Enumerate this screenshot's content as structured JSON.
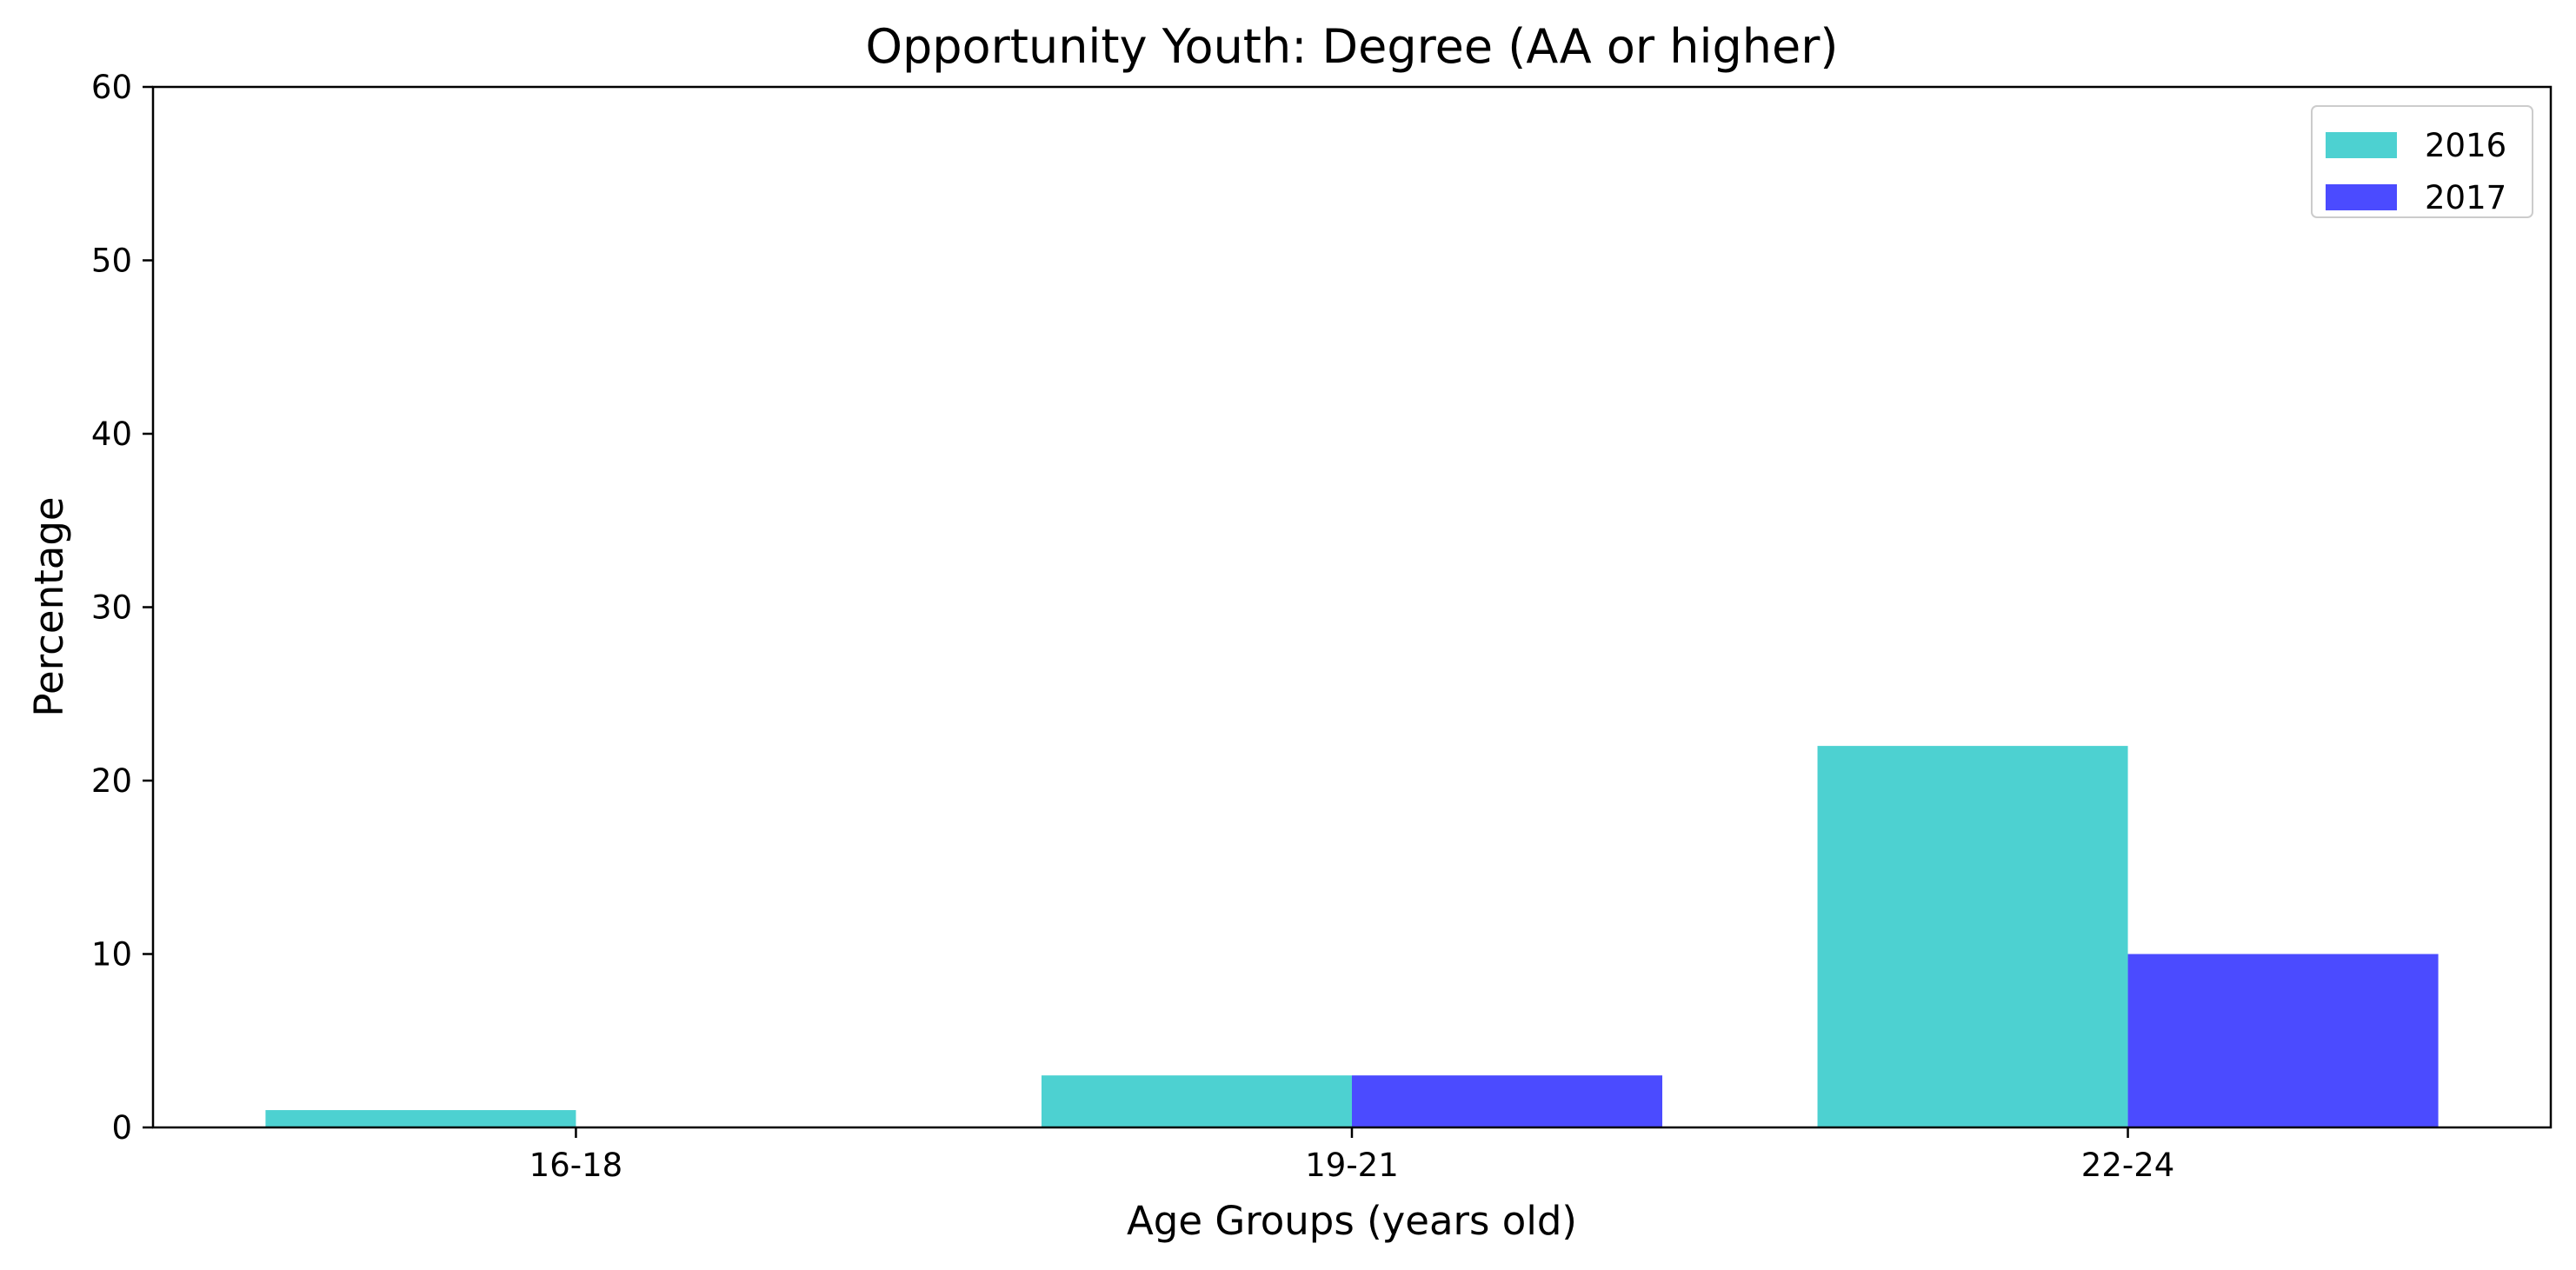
{
  "chart_data": {
    "type": "bar",
    "title": "Opportunity Youth: Degree (AA or higher)",
    "xlabel": "Age Groups (years old)",
    "ylabel": "Percentage",
    "categories": [
      "16-18",
      "19-21",
      "22-24"
    ],
    "series": [
      {
        "name": "2016",
        "values": [
          1,
          3,
          22
        ],
        "color": "#4dd1d1"
      },
      {
        "name": "2017",
        "values": [
          0,
          3,
          10
        ],
        "color": "#4b4bff"
      }
    ],
    "ylim": [
      0,
      60
    ],
    "yticks": [
      0,
      10,
      20,
      30,
      40,
      50,
      60
    ],
    "grid": false,
    "legend": "top-right"
  }
}
